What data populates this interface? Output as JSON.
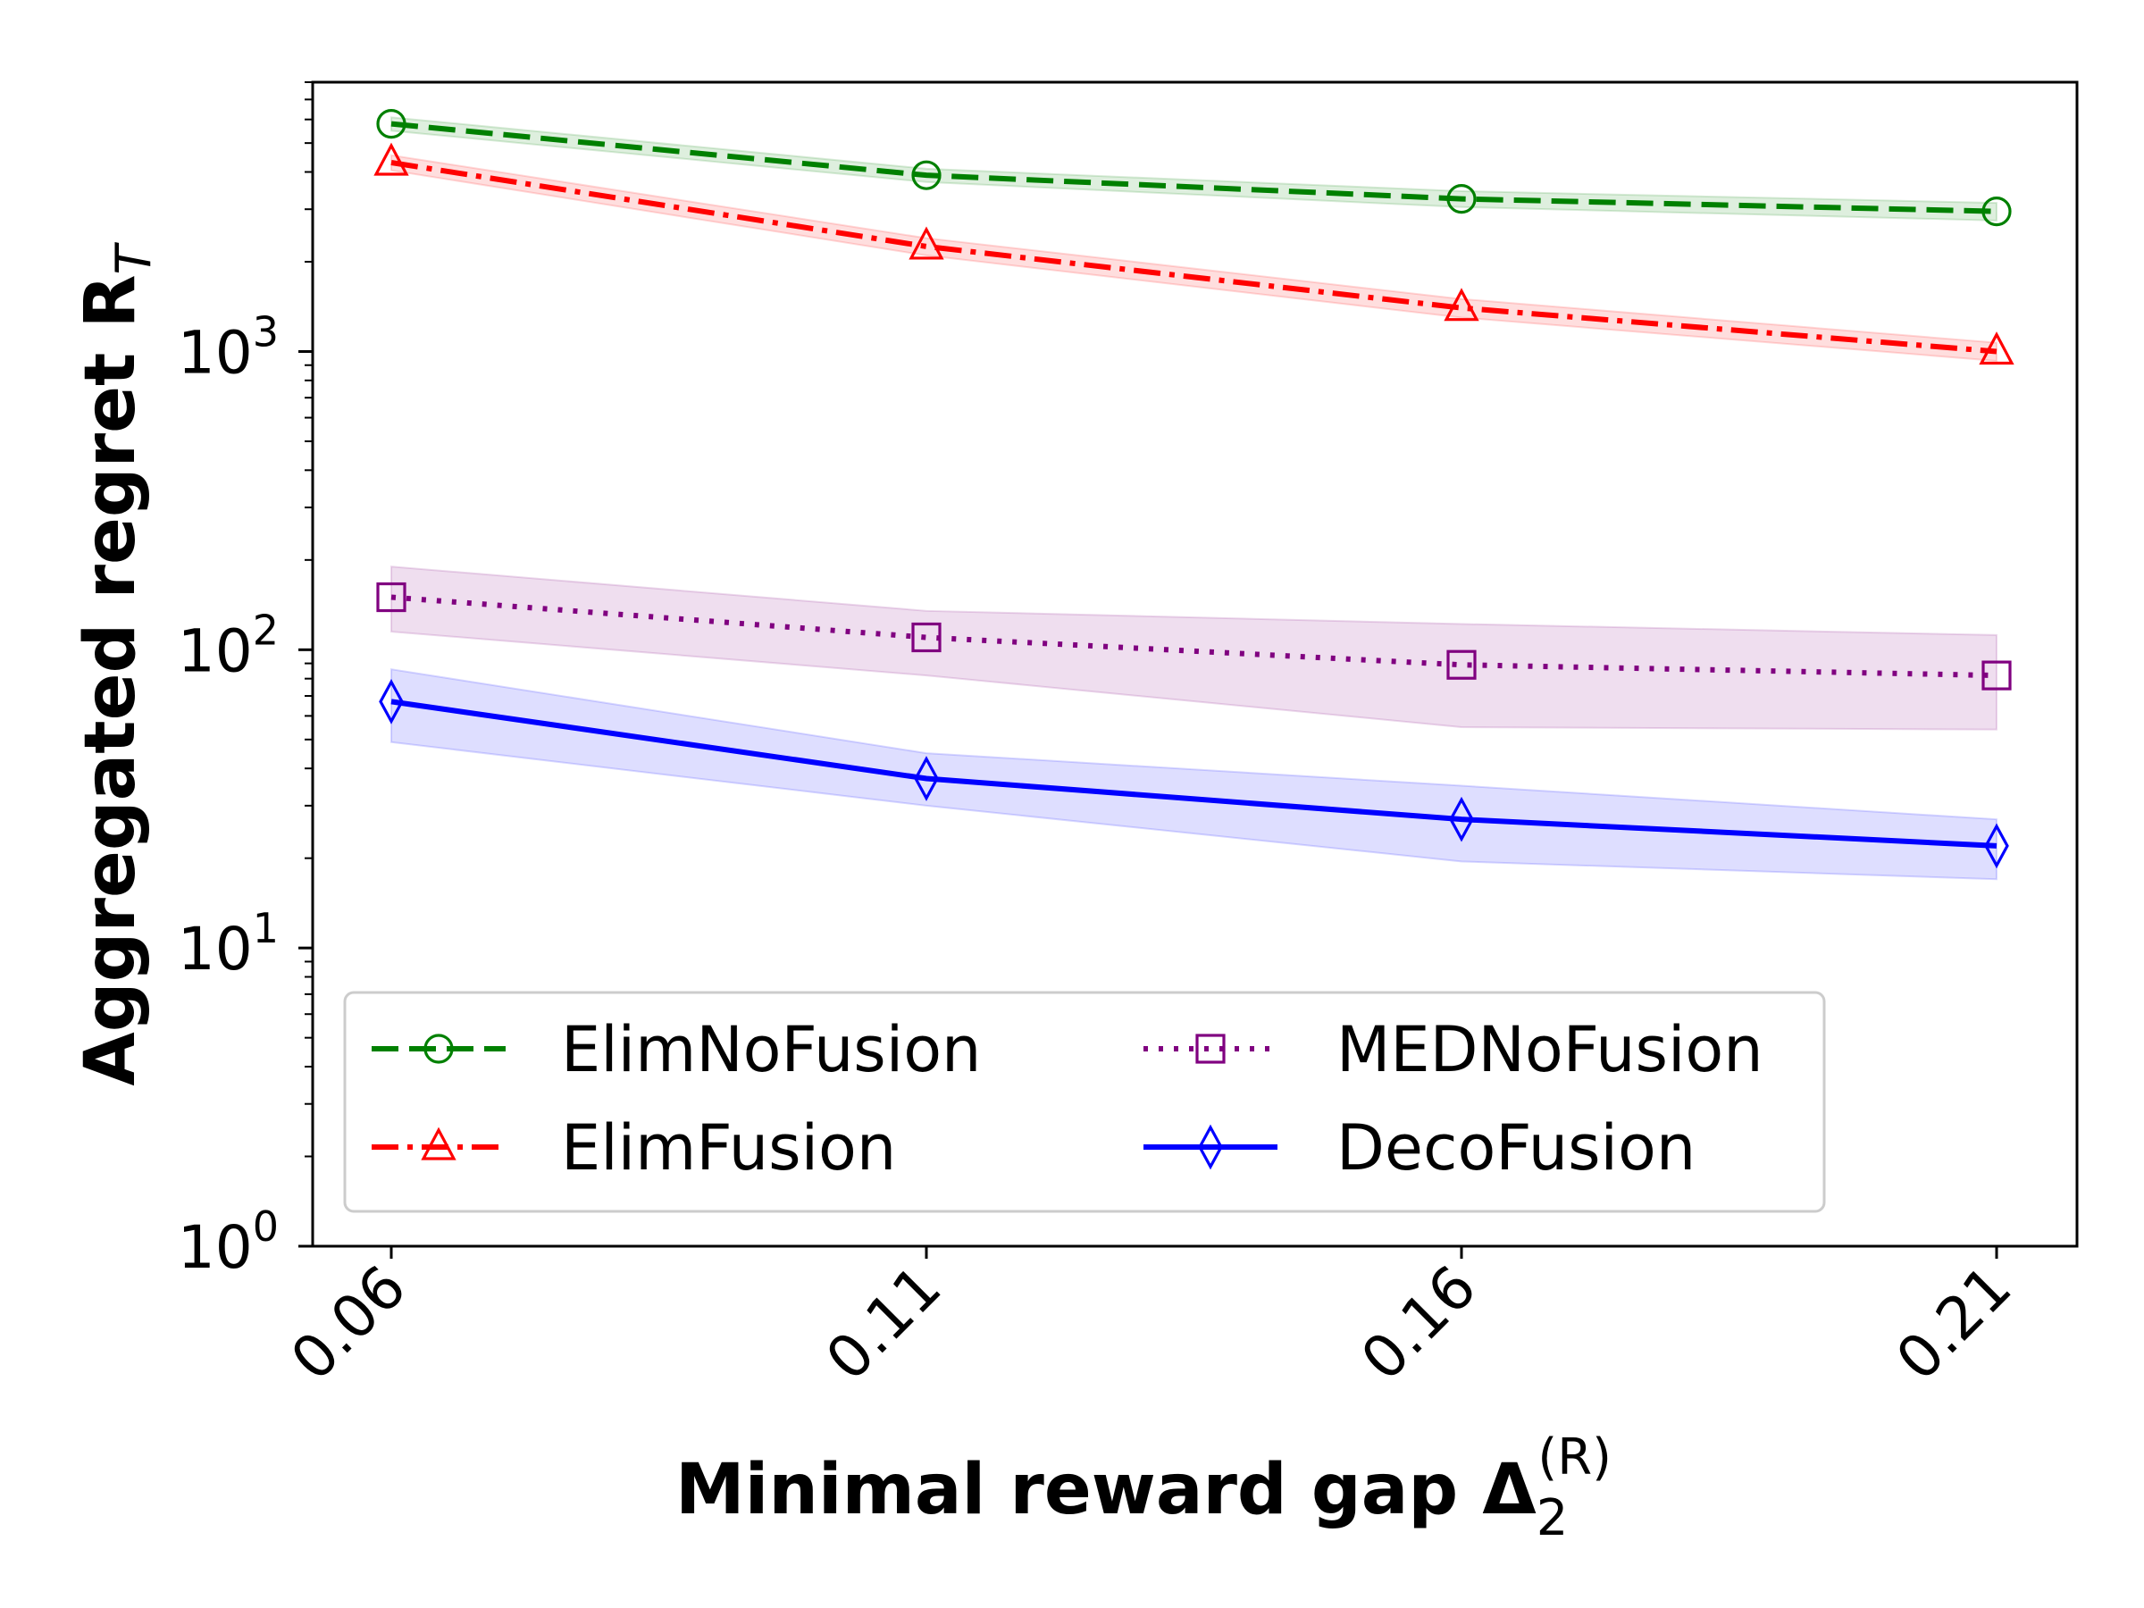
{
  "chart_data": {
    "type": "line",
    "xlabel_main": "Minimal reward gap Δ",
    "xlabel_sub": "2",
    "xlabel_sup": "(R)",
    "ylabel_main": "Aggregated regret R",
    "ylabel_sub": "T",
    "categories": [
      "0.06",
      "0.11",
      "0.16",
      "0.21"
    ],
    "yscale": "log",
    "ylim": [
      1,
      8000
    ],
    "yticks": [
      {
        "base": "10",
        "exp": "0",
        "value": 1
      },
      {
        "base": "10",
        "exp": "1",
        "value": 10
      },
      {
        "base": "10",
        "exp": "2",
        "value": 100
      },
      {
        "base": "10",
        "exp": "3",
        "value": 1000
      }
    ],
    "grid": false,
    "legend": "lower center, 2 columns",
    "series": [
      {
        "name": "ElimNoFusion",
        "color": "#008000",
        "linestyle": "dashed",
        "marker": "circle",
        "values": [
          5800,
          3900,
          3250,
          2950
        ],
        "lower": [
          5500,
          3700,
          3050,
          2750
        ],
        "upper": [
          6100,
          4100,
          3450,
          3150
        ]
      },
      {
        "name": "ElimFusion",
        "color": "#ff0000",
        "linestyle": "dash-dot",
        "marker": "triangle",
        "values": [
          4300,
          2250,
          1400,
          1000
        ],
        "lower": [
          4050,
          2100,
          1300,
          930
        ],
        "upper": [
          4550,
          2400,
          1500,
          1070
        ]
      },
      {
        "name": "MEDNoFusion",
        "color": "#800080",
        "linestyle": "dotted",
        "marker": "square",
        "values": [
          150,
          110,
          89,
          82
        ],
        "lower": [
          115,
          82,
          55,
          54
        ],
        "upper": [
          190,
          135,
          122,
          112
        ]
      },
      {
        "name": "DecoFusion",
        "color": "#0000ff",
        "linestyle": "solid",
        "marker": "diamond",
        "values": [
          67,
          37,
          27,
          22
        ],
        "lower": [
          49,
          30,
          19.5,
          17
        ],
        "upper": [
          86,
          45,
          35,
          27
        ]
      }
    ]
  }
}
